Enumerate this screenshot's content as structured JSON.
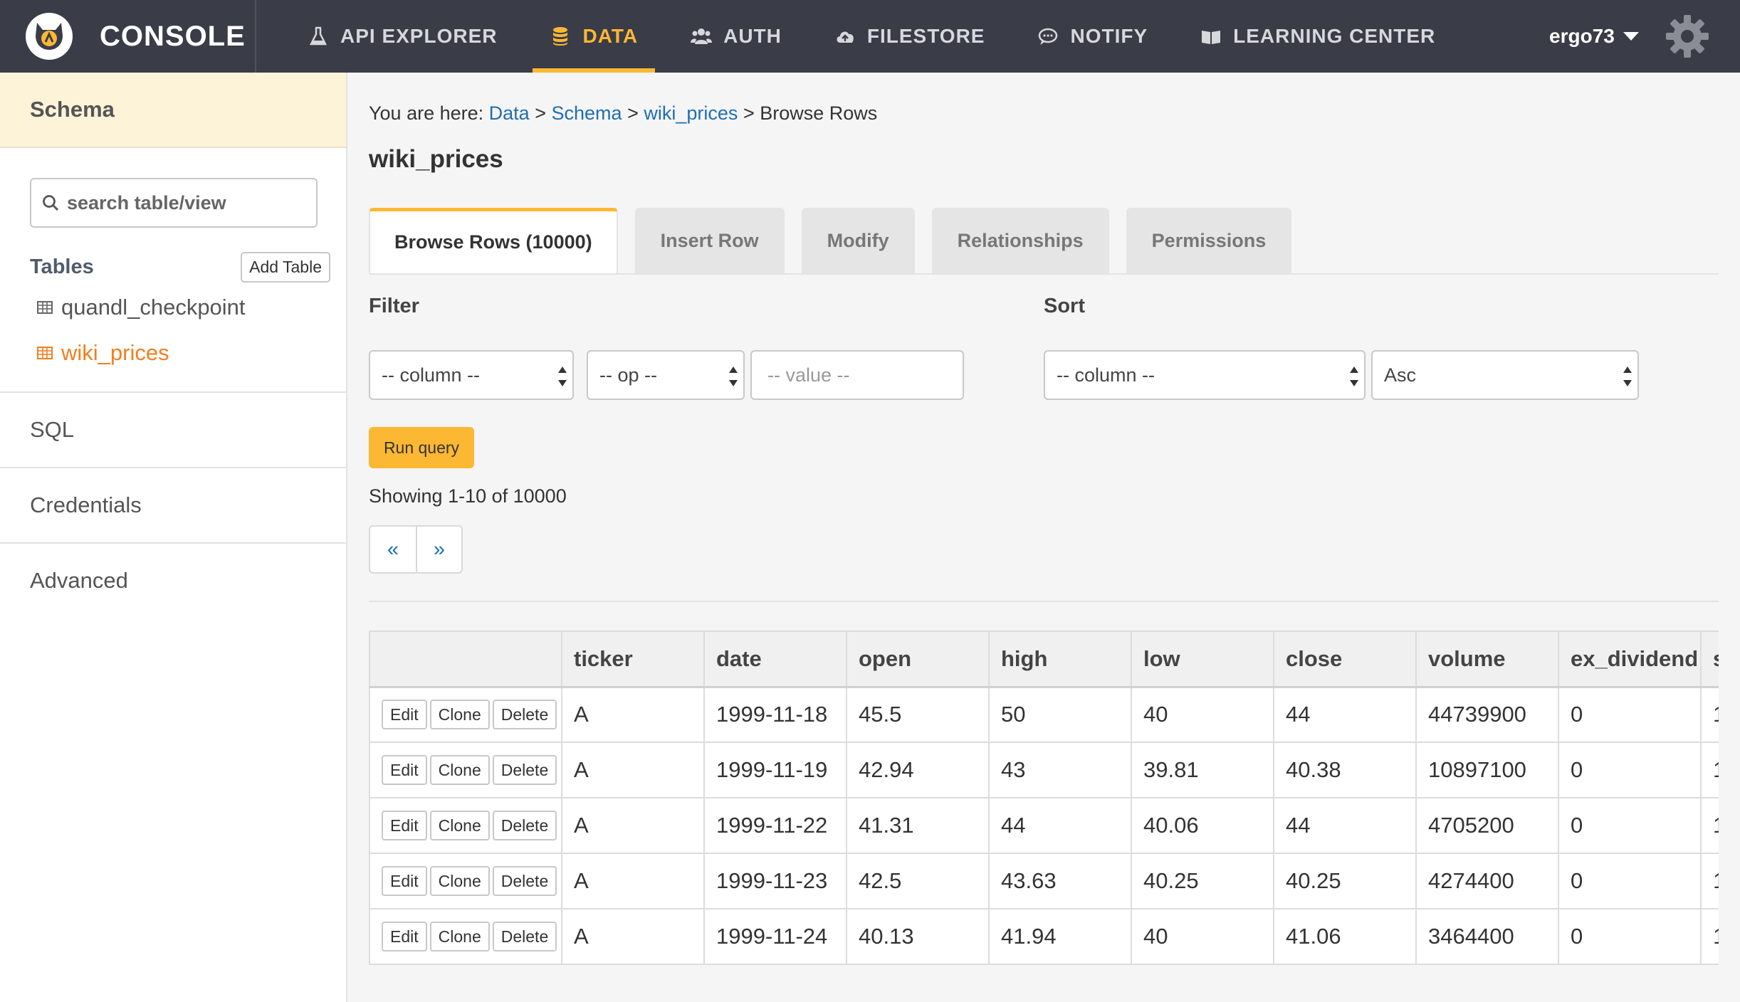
{
  "header": {
    "brand": "CONSOLE",
    "nav": [
      {
        "label": "API EXPLORER",
        "icon": "flask-icon"
      },
      {
        "label": "DATA",
        "icon": "database-icon",
        "active": true
      },
      {
        "label": "AUTH",
        "icon": "users-icon"
      },
      {
        "label": "FILESTORE",
        "icon": "cloud-upload-icon"
      },
      {
        "label": "NOTIFY",
        "icon": "chat-bubble-icon"
      },
      {
        "label": "LEARNING CENTER",
        "icon": "book-icon"
      }
    ],
    "user": "ergo73",
    "accent_color": "#fdb833",
    "bar_color": "#3a3c48"
  },
  "sidebar": {
    "title": "Schema",
    "search_placeholder": "search table/view",
    "tables_label": "Tables",
    "add_table_label": "Add Table",
    "tables": [
      {
        "name": "quandl_checkpoint",
        "active": false
      },
      {
        "name": "wiki_prices",
        "active": true
      }
    ],
    "sections": [
      "SQL",
      "Credentials",
      "Advanced"
    ],
    "active_color": "#f47e20"
  },
  "main": {
    "breadcrumb": {
      "prefix": "You are here:",
      "data": "Data",
      "schema": "Schema",
      "table": "wiki_prices",
      "current": "Browse Rows",
      "sep": ">"
    },
    "title": "wiki_prices",
    "tabs": [
      "Browse Rows (10000)",
      "Insert Row",
      "Modify",
      "Relationships",
      "Permissions"
    ],
    "filter": {
      "label": "Filter",
      "column": "-- column --",
      "op": "-- op --",
      "value_placeholder": "-- value --"
    },
    "sort": {
      "label": "Sort",
      "column": "-- column --",
      "order": "Asc"
    },
    "run_query": "Run query",
    "showing": "Showing 1-10 of 10000",
    "pager": {
      "prev": "«",
      "next": "»"
    },
    "grid": {
      "columns": [
        "ticker",
        "date",
        "open",
        "high",
        "low",
        "close",
        "volume",
        "ex_dividend",
        "s"
      ],
      "action_labels": {
        "edit": "Edit",
        "clone": "Clone",
        "delete": "Delete"
      },
      "rows": [
        [
          "A",
          "1999-11-18",
          "45.5",
          "50",
          "40",
          "44",
          "44739900",
          "0",
          "1"
        ],
        [
          "A",
          "1999-11-19",
          "42.94",
          "43",
          "39.81",
          "40.38",
          "10897100",
          "0",
          "1"
        ],
        [
          "A",
          "1999-11-22",
          "41.31",
          "44",
          "40.06",
          "44",
          "4705200",
          "0",
          "1"
        ],
        [
          "A",
          "1999-11-23",
          "42.5",
          "43.63",
          "40.25",
          "40.25",
          "4274400",
          "0",
          "1"
        ],
        [
          "A",
          "1999-11-24",
          "40.13",
          "41.94",
          "40",
          "41.06",
          "3464400",
          "0",
          "1"
        ]
      ]
    }
  }
}
